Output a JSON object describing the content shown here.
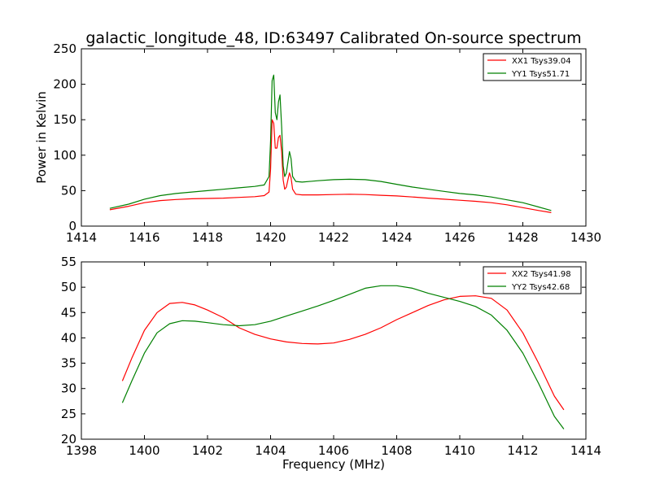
{
  "chart_data": [
    {
      "type": "line",
      "title": "galactic_longitude_48, ID:63497 Calibrated On-source spectrum",
      "xlabel": "",
      "ylabel": "Power in Kelvin",
      "xlim": [
        1414,
        1430
      ],
      "ylim": [
        0,
        250
      ],
      "xticks": [
        1414,
        1416,
        1418,
        1420,
        1422,
        1424,
        1426,
        1428,
        1430
      ],
      "yticks": [
        0,
        50,
        100,
        150,
        200,
        250
      ],
      "grid": false,
      "legend": "top-right",
      "series": [
        {
          "name": "XX1 Tsys39.04",
          "color": "#ff0000",
          "x": [
            1414.9,
            1415.5,
            1416.0,
            1416.5,
            1417.0,
            1417.5,
            1418.0,
            1418.5,
            1419.0,
            1419.5,
            1419.8,
            1419.95,
            1420.0,
            1420.05,
            1420.1,
            1420.15,
            1420.2,
            1420.25,
            1420.3,
            1420.35,
            1420.4,
            1420.45,
            1420.5,
            1420.55,
            1420.6,
            1420.65,
            1420.7,
            1420.8,
            1421.0,
            1421.5,
            1422.0,
            1422.5,
            1423.0,
            1423.5,
            1424.0,
            1424.5,
            1425.0,
            1425.5,
            1426.0,
            1426.5,
            1427.0,
            1427.5,
            1428.0,
            1428.5,
            1428.9
          ],
          "y": [
            23,
            28,
            33,
            36,
            37.5,
            38.5,
            39,
            39.5,
            40.5,
            41.5,
            43,
            48,
            80,
            150,
            145,
            110,
            110,
            125,
            128,
            105,
            65,
            52,
            55,
            65,
            75,
            68,
            52,
            45,
            44,
            44,
            44.5,
            45,
            44.5,
            43.5,
            42.5,
            41,
            39.5,
            38,
            36.5,
            35,
            33,
            30,
            26,
            22,
            19
          ]
        },
        {
          "name": "YY1 Tsys51.71",
          "color": "#008000",
          "x": [
            1414.9,
            1415.5,
            1416.0,
            1416.5,
            1417.0,
            1417.5,
            1418.0,
            1418.5,
            1419.0,
            1419.5,
            1419.8,
            1419.95,
            1420.0,
            1420.05,
            1420.1,
            1420.15,
            1420.2,
            1420.25,
            1420.3,
            1420.35,
            1420.4,
            1420.45,
            1420.5,
            1420.55,
            1420.6,
            1420.65,
            1420.7,
            1420.8,
            1421.0,
            1421.5,
            1422.0,
            1422.5,
            1423.0,
            1423.5,
            1424.0,
            1424.5,
            1425.0,
            1425.5,
            1426.0,
            1426.5,
            1427.0,
            1427.5,
            1428.0,
            1428.5,
            1428.9
          ],
          "y": [
            25,
            31,
            38,
            43,
            46,
            48,
            50,
            52,
            54,
            56,
            58,
            70,
            120,
            205,
            213,
            160,
            150,
            175,
            185,
            140,
            85,
            70,
            75,
            90,
            105,
            95,
            70,
            63,
            62,
            64,
            65.5,
            66,
            65.5,
            63,
            59,
            55,
            52,
            49,
            46,
            44,
            41,
            37,
            33,
            27,
            22
          ]
        }
      ]
    },
    {
      "type": "line",
      "title": "",
      "xlabel": "Frequency (MHz)",
      "ylabel": "",
      "xlim": [
        1398,
        1414
      ],
      "ylim": [
        20,
        55
      ],
      "xticks": [
        1398,
        1400,
        1402,
        1404,
        1406,
        1408,
        1410,
        1412,
        1414
      ],
      "yticks": [
        20,
        25,
        30,
        35,
        40,
        45,
        50,
        55
      ],
      "grid": false,
      "legend": "top-right",
      "series": [
        {
          "name": "XX2 Tsys41.98",
          "color": "#ff0000",
          "x": [
            1399.3,
            1399.6,
            1400.0,
            1400.4,
            1400.8,
            1401.2,
            1401.6,
            1402.0,
            1402.5,
            1403.0,
            1403.5,
            1404.0,
            1404.5,
            1405.0,
            1405.5,
            1406.0,
            1406.5,
            1407.0,
            1407.5,
            1408.0,
            1408.5,
            1409.0,
            1409.5,
            1410.0,
            1410.5,
            1411.0,
            1411.5,
            1412.0,
            1412.5,
            1413.0,
            1413.3
          ],
          "y": [
            31.5,
            36,
            41.5,
            45,
            46.8,
            47,
            46.5,
            45.5,
            44,
            42,
            40.7,
            39.8,
            39.2,
            38.9,
            38.8,
            39,
            39.7,
            40.7,
            42,
            43.6,
            45,
            46.4,
            47.5,
            48.2,
            48.3,
            47.8,
            45.5,
            41,
            35,
            28.5,
            25.8
          ]
        },
        {
          "name": "YY2 Tsys42.68",
          "color": "#008000",
          "x": [
            1399.3,
            1399.6,
            1400.0,
            1400.4,
            1400.8,
            1401.2,
            1401.6,
            1402.0,
            1402.5,
            1403.0,
            1403.5,
            1404.0,
            1404.5,
            1405.0,
            1405.5,
            1406.0,
            1406.5,
            1407.0,
            1407.5,
            1408.0,
            1408.5,
            1409.0,
            1409.5,
            1410.0,
            1410.5,
            1411.0,
            1411.5,
            1412.0,
            1412.5,
            1413.0,
            1413.3
          ],
          "y": [
            27.2,
            31.5,
            37,
            41,
            42.8,
            43.4,
            43.3,
            43,
            42.6,
            42.4,
            42.6,
            43.3,
            44.3,
            45.3,
            46.3,
            47.4,
            48.6,
            49.8,
            50.3,
            50.3,
            49.8,
            48.8,
            48,
            47.2,
            46.2,
            44.5,
            41.5,
            37,
            31,
            24.5,
            22
          ]
        }
      ]
    }
  ]
}
